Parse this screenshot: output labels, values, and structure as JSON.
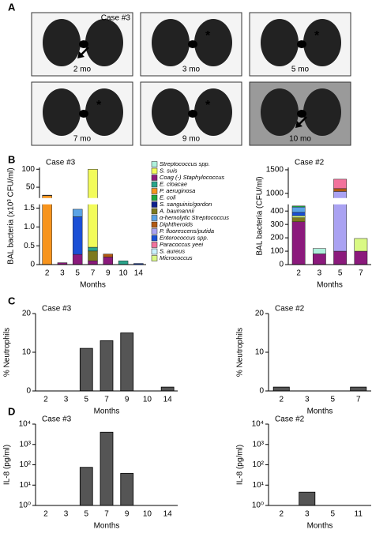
{
  "panel_labels": [
    "A",
    "B",
    "C",
    "D"
  ],
  "panel_a": {
    "case_label": "Case #3",
    "images": [
      {
        "label": "2 mo"
      },
      {
        "label": "3 mo",
        "annotation": "*"
      },
      {
        "label": "5 mo",
        "annotation": "*"
      },
      {
        "label": "7 mo",
        "annotation": "*"
      },
      {
        "label": "9 mo",
        "annotation": "*"
      },
      {
        "label": "10 mo"
      }
    ]
  },
  "chart_data": [
    {
      "type": "stacked_bar",
      "title": "Case #3",
      "ylabel": "BAL bacteria (x10³ CFU/ml)",
      "xlabel": "Months",
      "categories": [
        "2",
        "3",
        "5",
        "7",
        "9",
        "10",
        "14"
      ],
      "axis_segments": [
        {
          "ylim": [
            0,
            1.6
          ],
          "yticks": [
            0,
            0.5,
            {
              "value": 1,
              "label": "1.0"
            },
            1.5
          ]
        },
        {
          "ylim": [
            20,
            105
          ],
          "yticks": [
            50,
            100
          ]
        }
      ],
      "series": [
        {
          "name": "Streptococcus spp.",
          "color": "#aef0dc",
          "values": [
            null,
            null,
            null,
            null,
            null,
            null,
            null
          ]
        },
        {
          "name": "S. suis",
          "color": "#f2fb5a",
          "values": [
            null,
            null,
            null,
            99.54,
            null,
            null,
            null
          ]
        },
        {
          "name": "Coag (-) Staphylococcus",
          "color": "#8b1a7c",
          "values": [
            null,
            0.05,
            0.27,
            0.1,
            0.2,
            null,
            null
          ]
        },
        {
          "name": "E. cloacae",
          "color": "#2aa58c",
          "values": [
            null,
            null,
            null,
            0.1,
            null,
            0.1,
            null
          ]
        },
        {
          "name": "P. aeruginosa",
          "color": "#f7941d",
          "values": [
            27,
            null,
            null,
            null,
            null,
            null,
            null
          ]
        },
        {
          "name": "E. coli",
          "color": "#1fa83c",
          "values": [
            null,
            null,
            null,
            null,
            null,
            null,
            null
          ]
        },
        {
          "name": "S. sanguinis/gordon",
          "color": "#0d1f8c",
          "values": [
            null,
            null,
            null,
            null,
            null,
            null,
            null
          ]
        },
        {
          "name": "A. baumannii",
          "color": "#7d7a1e",
          "values": [
            null,
            null,
            null,
            0.26,
            null,
            null,
            null
          ]
        },
        {
          "name": "α-hemolytic Streptococcus",
          "color": "#5aa3e6",
          "values": [
            null,
            null,
            0.2,
            null,
            null,
            null,
            null
          ]
        },
        {
          "name": "Diphtheroids",
          "color": "#b25a12",
          "values": [
            null,
            null,
            null,
            null,
            0.08,
            null,
            null
          ]
        },
        {
          "name": "P. fluorescens/putida",
          "color": "#aaa2f2",
          "values": [
            null,
            null,
            null,
            null,
            null,
            null,
            null
          ]
        },
        {
          "name": "Enterococcus spp.",
          "color": "#1a4fd6",
          "values": [
            1,
            null,
            1,
            null,
            null,
            null,
            0.03
          ]
        },
        {
          "name": "Paracoccus yeei",
          "color": "#f2729c",
          "values": [
            null,
            null,
            null,
            null,
            null,
            null,
            null
          ]
        },
        {
          "name": "S. aureus",
          "color": "#c9f1ff",
          "values": [
            null,
            null,
            null,
            null,
            null,
            null,
            null
          ]
        },
        {
          "name": "Micrococcus",
          "color": "#d9f984",
          "values": [
            null,
            null,
            null,
            null,
            null,
            null,
            null
          ]
        }
      ]
    },
    {
      "type": "stacked_bar",
      "title": "Case #2",
      "ylabel": "BAL bacteria (CFU/ml)",
      "xlabel": "Months",
      "categories": [
        "2",
        "3",
        "5",
        "7"
      ],
      "axis_segments": [
        {
          "ylim": [
            0,
            450
          ],
          "yticks": [
            0,
            100,
            200,
            300,
            400
          ]
        },
        {
          "ylim": [
            900,
            1550
          ],
          "yticks": [
            1000,
            1500
          ]
        }
      ],
      "series": [
        {
          "color": "#8b1a7c",
          "values": [
            320,
            80,
            100,
            100
          ]
        },
        {
          "color": "#7d7a1e",
          "values": [
            30,
            null,
            null,
            null
          ]
        },
        {
          "color": "#d9f984",
          "values": [
            15,
            null,
            null,
            95
          ]
        },
        {
          "color": "#1a4fd6",
          "values": [
            25,
            null,
            null,
            null
          ]
        },
        {
          "color": "#5aa3e6",
          "values": [
            40,
            null,
            null,
            null
          ]
        },
        {
          "color": "#1fa83c",
          "values": [
            8,
            null,
            null,
            null
          ]
        },
        {
          "color": "#aef0dc",
          "values": [
            null,
            40,
            null,
            null
          ]
        },
        {
          "color": "#aaa2f2",
          "values": [
            null,
            null,
            940,
            null
          ]
        },
        {
          "color": "#b25a12",
          "values": [
            null,
            null,
            60,
            null
          ]
        },
        {
          "color": "#f2729c",
          "values": [
            null,
            null,
            200,
            null
          ]
        }
      ]
    },
    {
      "type": "bar",
      "title": "Case #3",
      "ylabel": "% Neutrophils",
      "xlabel": "Months",
      "color": "#555555",
      "categories": [
        "2",
        "3",
        "5",
        "7",
        "9",
        "10",
        "14"
      ],
      "values": [
        0,
        0,
        11,
        13,
        15,
        0,
        1
      ],
      "ylim": [
        0,
        20
      ],
      "yticks": [
        0,
        10,
        20
      ]
    },
    {
      "type": "bar",
      "title": "Case #2",
      "ylabel": "% Neutrophils",
      "xlabel": "Months",
      "color": "#555555",
      "categories": [
        "2",
        "3",
        "5",
        "7"
      ],
      "values": [
        1,
        0,
        0,
        1
      ],
      "ylim": [
        0,
        20
      ],
      "yticks": [
        0,
        10,
        20
      ]
    },
    {
      "type": "bar",
      "title": "Case #3",
      "ylabel": "IL-8 (pg/ml)",
      "xlabel": "Months",
      "color": "#555555",
      "log_scale": true,
      "categories": [
        "2",
        "3",
        "5",
        "7",
        "9",
        "10",
        "14"
      ],
      "values": [
        null,
        null,
        75,
        4000,
        38,
        null,
        null
      ],
      "ylim": [
        1,
        10000
      ],
      "yticks": [
        {
          "value": 1,
          "label": "10⁰"
        },
        {
          "value": 10,
          "label": "10¹"
        },
        {
          "value": 100,
          "label": "10²"
        },
        {
          "value": 1000,
          "label": "10³"
        },
        {
          "value": 10000,
          "label": "10⁴"
        }
      ]
    },
    {
      "type": "bar",
      "title": "Case #2",
      "ylabel": "IL-8 (pg/ml)",
      "xlabel": "Months",
      "color": "#555555",
      "log_scale": true,
      "categories": [
        "2",
        "3",
        "5",
        "11"
      ],
      "values": [
        null,
        4.5,
        null,
        null
      ],
      "ylim": [
        1,
        10000
      ],
      "yticks": [
        {
          "value": 1,
          "label": "10⁰"
        },
        {
          "value": 10,
          "label": "10¹"
        },
        {
          "value": 100,
          "label": "10²"
        },
        {
          "value": 1000,
          "label": "10³"
        },
        {
          "value": 10000,
          "label": "10⁴"
        }
      ]
    }
  ]
}
